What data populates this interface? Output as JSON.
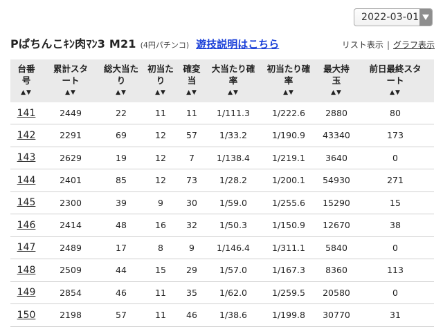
{
  "date_selector": {
    "value": "2022-03-01"
  },
  "header": {
    "machine_name": "Pぱちんこｷﾝ肉ﾏﾝ3 M21",
    "rate": "(4円パチンコ)",
    "rules_link": "遊技説明はこちら",
    "list_view": "リスト表示",
    "separator": "|",
    "graph_view": "グラフ表示"
  },
  "sort_marker": "▲▼",
  "table": {
    "columns": [
      [
        "台番",
        "号"
      ],
      [
        "累計スタ",
        "ート"
      ],
      [
        "総大当た",
        "り"
      ],
      [
        "初当た",
        "り"
      ],
      [
        "確変",
        "当"
      ],
      [
        "大当たり確",
        "率"
      ],
      [
        "初当たり確",
        "率"
      ],
      [
        "最大持",
        "玉"
      ],
      [
        "前日最終スタ",
        "ート"
      ]
    ],
    "rows": [
      [
        "141",
        "2449",
        "22",
        "11",
        "11",
        "1/111.3",
        "1/222.6",
        "2880",
        "80"
      ],
      [
        "142",
        "2291",
        "69",
        "12",
        "57",
        "1/33.2",
        "1/190.9",
        "43340",
        "173"
      ],
      [
        "143",
        "2629",
        "19",
        "12",
        "7",
        "1/138.4",
        "1/219.1",
        "3640",
        "0"
      ],
      [
        "144",
        "2401",
        "85",
        "12",
        "73",
        "1/28.2",
        "1/200.1",
        "54930",
        "271"
      ],
      [
        "145",
        "2300",
        "39",
        "9",
        "30",
        "1/59.0",
        "1/255.6",
        "15290",
        "15"
      ],
      [
        "146",
        "2414",
        "48",
        "16",
        "32",
        "1/50.3",
        "1/150.9",
        "12670",
        "38"
      ],
      [
        "147",
        "2489",
        "17",
        "8",
        "9",
        "1/146.4",
        "1/311.1",
        "5840",
        "0"
      ],
      [
        "148",
        "2509",
        "44",
        "15",
        "29",
        "1/57.0",
        "1/167.3",
        "8360",
        "113"
      ],
      [
        "149",
        "2854",
        "46",
        "11",
        "35",
        "1/62.0",
        "1/259.5",
        "20580",
        "0"
      ],
      [
        "150",
        "2198",
        "57",
        "11",
        "46",
        "1/38.6",
        "1/199.8",
        "30770",
        "31"
      ]
    ]
  }
}
